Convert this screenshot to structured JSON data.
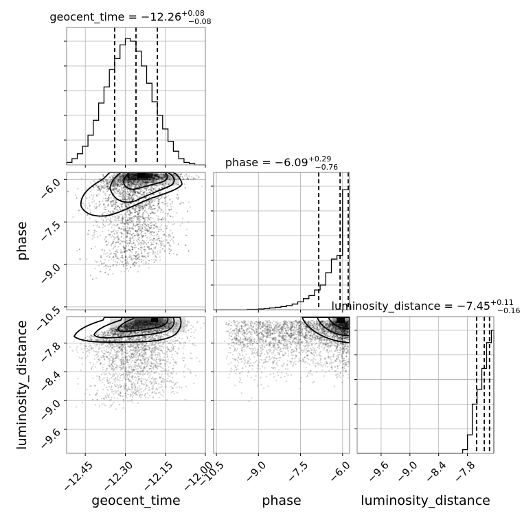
{
  "chart_data": {
    "type": "corner",
    "parameters": [
      {
        "name": "geocent_time",
        "median": -12.26,
        "plus": "0.08",
        "minus": "0.08",
        "quantiles": [
          -12.34,
          -12.26,
          -12.18
        ],
        "range": [
          -12.52,
          -12.0
        ],
        "ticks": [
          -12.45,
          -12.3,
          -12.15,
          -12.0
        ],
        "tick_labels": [
          "−12.45",
          "−12.30",
          "−12.15",
          "−12.00"
        ]
      },
      {
        "name": "phase",
        "median": -6.09,
        "plus": "0.29",
        "minus": "0.76",
        "quantiles": [
          -6.85,
          -6.09,
          -5.8
        ],
        "range": [
          -10.6,
          -5.75
        ],
        "ticks": [
          -10.5,
          -9.0,
          -7.5,
          -6.0
        ],
        "tick_labels": [
          "−10.5",
          "−9.0",
          "−7.5",
          "−6.0"
        ]
      },
      {
        "name": "luminosity_distance",
        "median": -7.45,
        "plus": "0.11",
        "minus": "0.16",
        "quantiles": [
          -7.61,
          -7.45,
          -7.34
        ],
        "range": [
          -10.1,
          -7.25
        ],
        "ticks": [
          -9.6,
          -9.0,
          -8.4,
          -7.8
        ],
        "tick_labels": [
          "−9.6",
          "−9.0",
          "−8.4",
          "−7.8"
        ]
      }
    ],
    "titles": [
      "geocent_time = −12.26",
      "phase = −6.09",
      "luminosity_distance = −7.45"
    ],
    "title_plus": [
      "+0.08",
      "+0.29",
      "+0.11"
    ],
    "title_minus": [
      "−0.08",
      "−0.76",
      "−0.16"
    ],
    "histograms": [
      {
        "bin_edges": [
          -12.52,
          -12.5,
          -12.48,
          -12.46,
          -12.44,
          -12.42,
          -12.4,
          -12.38,
          -12.36,
          -12.34,
          -12.32,
          -12.3,
          -12.28,
          -12.26,
          -12.24,
          -12.22,
          -12.2,
          -12.18,
          -12.16,
          -12.14,
          -12.12,
          -12.1,
          -12.08,
          -12.06,
          -12.04,
          -12.02,
          -12.0
        ],
        "counts": [
          0.02,
          0.05,
          0.09,
          0.15,
          0.24,
          0.36,
          0.5,
          0.63,
          0.77,
          0.86,
          0.97,
          1.02,
          1.0,
          0.92,
          0.8,
          0.66,
          0.51,
          0.4,
          0.29,
          0.19,
          0.11,
          0.05,
          0.02,
          0.01,
          0.0,
          0.0
        ]
      },
      {
        "bin_edges": [
          -10.6,
          -10.4,
          -10.2,
          -10.0,
          -9.8,
          -9.6,
          -9.4,
          -9.2,
          -9.0,
          -8.8,
          -8.6,
          -8.4,
          -8.2,
          -8.0,
          -7.8,
          -7.6,
          -7.4,
          -7.2,
          -7.0,
          -6.8,
          -6.6,
          -6.4,
          -6.2,
          -6.0,
          -5.8,
          -5.75
        ],
        "counts": [
          0.0,
          0.0,
          0.0,
          0.0,
          0.0,
          0.0,
          0.003,
          0.003,
          0.006,
          0.01,
          0.015,
          0.02,
          0.026,
          0.034,
          0.046,
          0.064,
          0.09,
          0.115,
          0.16,
          0.2,
          0.3,
          0.41,
          0.44,
          0.97,
          1.0
        ]
      },
      {
        "bin_edges": [
          -10.1,
          -8.4,
          -8.3,
          -8.2,
          -8.1,
          -8.0,
          -7.9,
          -7.8,
          -7.7,
          -7.6,
          -7.5,
          -7.4,
          -7.3,
          -7.25
        ],
        "counts": [
          0.0,
          0.0,
          0.0,
          0.0,
          0.0,
          0.0,
          0.03,
          0.15,
          0.4,
          0.52,
          0.69,
          0.9,
          1.0
        ]
      }
    ]
  }
}
